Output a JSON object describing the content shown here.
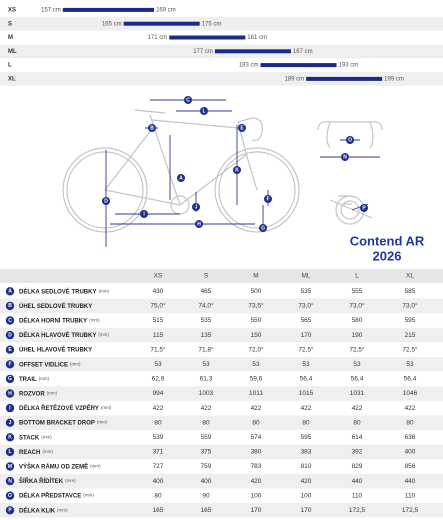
{
  "size_chart": {
    "xlim": [
      149,
      207
    ],
    "rows": [
      {
        "size": "XS",
        "min": 157,
        "max": 169,
        "min_label": "157 cm",
        "max_label": "169 cm"
      },
      {
        "size": "S",
        "min": 165,
        "max": 175,
        "min_label": "165 cm",
        "max_label": "175 cm"
      },
      {
        "size": "M",
        "min": 171,
        "max": 181,
        "min_label": "171 cm",
        "max_label": "181 cm"
      },
      {
        "size": "ML",
        "min": 177,
        "max": 187,
        "min_label": "177 cm",
        "max_label": "187 cm"
      },
      {
        "size": "L",
        "min": 183,
        "max": 193,
        "min_label": "183 cm",
        "max_label": "193 cm"
      },
      {
        "size": "XL",
        "min": 189,
        "max": 199,
        "min_label": "189 cm",
        "max_label": "199 cm"
      }
    ]
  },
  "model": "Contend AR",
  "year": "2026",
  "table": {
    "header": [
      "XS",
      "S",
      "M",
      "ML",
      "L",
      "XL"
    ],
    "rows": [
      {
        "letter": "A",
        "name": "DÉLKA SEDLOVÉ TRUBKY",
        "unit": "(mm)",
        "values": [
          "430",
          "465",
          "500",
          "535",
          "555",
          "585"
        ]
      },
      {
        "letter": "B",
        "name": "ÚHEL SEDLOVÉ TRUBKY",
        "values": [
          "75,0°",
          "74,0°",
          "73,5°",
          "73,0°",
          "73,0°",
          "73,0°"
        ]
      },
      {
        "letter": "C",
        "name": "DÉLKA HORNÍ TRUBKY",
        "unit": "(mm)",
        "values": [
          "515",
          "535",
          "550",
          "565",
          "580",
          "595"
        ]
      },
      {
        "letter": "D",
        "name": "DÉLKA HLAVOVÉ TRUBKY",
        "unit": "(mm)",
        "values": [
          "115",
          "135",
          "150",
          "170",
          "190",
          "215"
        ]
      },
      {
        "letter": "E",
        "name": "ÚHEL HLAVOVÉ TRUBKY",
        "values": [
          "71,5°",
          "71,8°",
          "72,0°",
          "72,5°",
          "72,5°",
          "72,5°"
        ]
      },
      {
        "letter": "F",
        "name": "OFFSET VIDLICE",
        "unit": "(mm)",
        "values": [
          "53",
          "53",
          "53",
          "53",
          "53",
          "53"
        ]
      },
      {
        "letter": "G",
        "name": "TRAIL",
        "unit": "(mm)",
        "values": [
          "62,9",
          "61,3",
          "59,6",
          "56,4",
          "56,4",
          "56,4"
        ]
      },
      {
        "letter": "H",
        "name": "ROZVOR",
        "unit": "(mm)",
        "values": [
          "994",
          "1003",
          "1011",
          "1015",
          "1031",
          "1046"
        ]
      },
      {
        "letter": "I",
        "name": "DÉLKA ŘETĚZOVÉ VZPĚRY",
        "unit": "(mm)",
        "values": [
          "422",
          "422",
          "422",
          "422",
          "422",
          "422"
        ]
      },
      {
        "letter": "J",
        "name": "BOTTOM BRACKET DROP",
        "unit": "(mm)",
        "values": [
          "80",
          "80",
          "80",
          "80",
          "80",
          "80"
        ]
      },
      {
        "letter": "K",
        "name": "STACK",
        "unit": "(mm)",
        "values": [
          "539",
          "559",
          "574",
          "595",
          "614",
          "638"
        ]
      },
      {
        "letter": "L",
        "name": "REACH",
        "unit": "(mm)",
        "values": [
          "371",
          "375",
          "380",
          "383",
          "392",
          "400"
        ]
      },
      {
        "letter": "M",
        "name": "VÝŠKA RÁMU OD ZEMĚ",
        "unit": "(mm)",
        "values": [
          "727",
          "759",
          "783",
          "810",
          "829",
          "856"
        ]
      },
      {
        "letter": "N",
        "name": "ŠÍŘKA ŘÍDÍTEK",
        "unit": "(mm)",
        "values": [
          "400",
          "400",
          "420",
          "420",
          "440",
          "440"
        ]
      },
      {
        "letter": "O",
        "name": "DÉLKA PŘEDSTAVCE",
        "unit": "(mm)",
        "values": [
          "80",
          "90",
          "100",
          "100",
          "110",
          "110"
        ]
      },
      {
        "letter": "P",
        "name": "DÉLKA KLIK",
        "unit": "(mm)",
        "values": [
          "165",
          "165",
          "170",
          "170",
          "172,5",
          "172,5"
        ]
      }
    ]
  }
}
